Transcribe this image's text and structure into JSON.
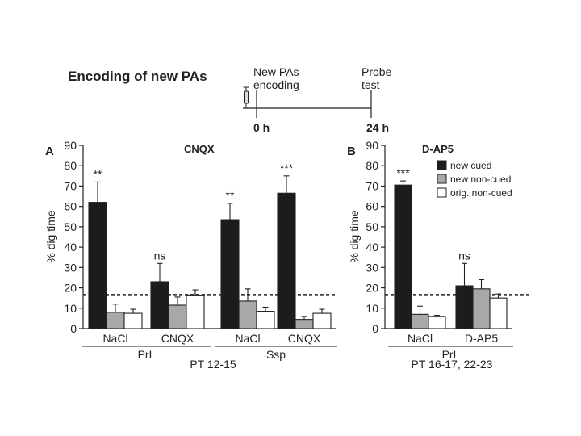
{
  "header": {
    "title": "Encoding of new PAs",
    "event1": "New PAs",
    "event1_line2": "encoding",
    "event2": "Probe",
    "event2_line2": "test",
    "time1": "0 h",
    "time2": "24 h"
  },
  "colors": {
    "new_cued": "#1c1c1c",
    "new_noncued": "#a8a8a8",
    "orig_noncued": "#ffffff",
    "ink": "#222222"
  },
  "chart_data": [
    {
      "type": "bar",
      "panel": "A",
      "title": "CNQX",
      "ylabel": "% dig time",
      "ylim": [
        0,
        90
      ],
      "yticks": [
        0,
        10,
        20,
        30,
        40,
        50,
        60,
        70,
        80,
        90
      ],
      "chance_line": 16.7,
      "categories": [
        "NaCl",
        "CNQX",
        "NaCl",
        "CNQX"
      ],
      "groups": [
        {
          "label": "PrL",
          "span": [
            0,
            1
          ]
        },
        {
          "label": "Ssp",
          "span": [
            2,
            3
          ]
        }
      ],
      "footer": "PT 12-15",
      "series": [
        {
          "name": "new cued",
          "values": [
            62,
            23,
            53.5,
            66.5
          ],
          "errors": [
            10,
            9,
            8,
            8.5
          ]
        },
        {
          "name": "new non-cued",
          "values": [
            8,
            11.5,
            13.5,
            4.5
          ],
          "errors": [
            4,
            4,
            6,
            1.5
          ]
        },
        {
          "name": "orig. non-cued",
          "values": [
            7.5,
            16.5,
            8.5,
            7.5
          ],
          "errors": [
            2,
            2.5,
            2,
            2
          ]
        }
      ],
      "annotations": [
        "**",
        "ns",
        "**",
        "***"
      ]
    },
    {
      "type": "bar",
      "panel": "B",
      "title": "D-AP5",
      "ylabel": "% dig time",
      "ylim": [
        0,
        90
      ],
      "yticks": [
        0,
        10,
        20,
        30,
        40,
        50,
        60,
        70,
        80,
        90
      ],
      "chance_line": 16.7,
      "categories": [
        "NaCl",
        "D-AP5"
      ],
      "groups": [
        {
          "label": "PrL",
          "span": [
            0,
            1
          ]
        }
      ],
      "footer": "PT 16-17, 22-23",
      "legend_position": "top-right",
      "series": [
        {
          "name": "new cued",
          "values": [
            70.5,
            21
          ],
          "errors": [
            2,
            11
          ]
        },
        {
          "name": "new non-cued",
          "values": [
            7,
            19.5
          ],
          "errors": [
            4,
            4.5
          ]
        },
        {
          "name": "orig. non-cued",
          "values": [
            6,
            15
          ],
          "errors": [
            0.5,
            2
          ]
        }
      ],
      "annotations": [
        "***",
        "ns"
      ]
    }
  ]
}
